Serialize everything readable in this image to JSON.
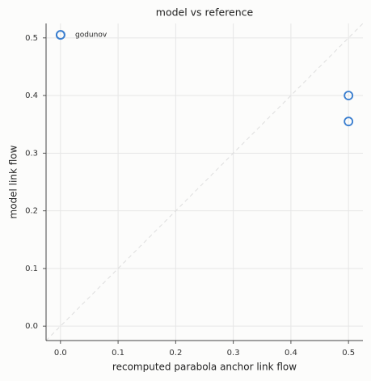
{
  "chart_data": {
    "type": "scatter",
    "title": "model vs reference",
    "xlabel": "recomputed parabola anchor link flow",
    "ylabel": "model link flow",
    "x": [
      0,
      0.5,
      0.5
    ],
    "series": [
      {
        "name": "godunov",
        "color": "#3a7ecf",
        "values": [
          0.505,
          0.4,
          0.355
        ]
      }
    ],
    "xlim": [
      -0.025,
      0.525
    ],
    "ylim": [
      -0.025,
      0.525
    ],
    "xticks": [
      {
        "value": 0,
        "label": "0.0"
      },
      0.1,
      0.2,
      0.3,
      0.4,
      0.5
    ],
    "yticks": [
      {
        "value": 0,
        "label": "0.0"
      },
      0.1,
      0.2,
      0.3,
      0.4,
      0.5
    ],
    "grid": true,
    "legend": "upper left"
  }
}
